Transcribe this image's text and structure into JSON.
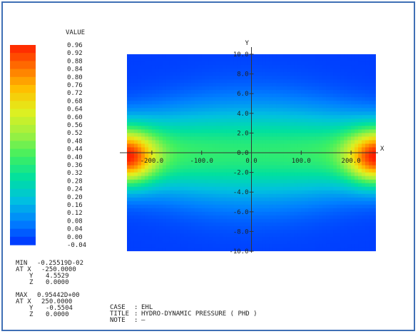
{
  "chart_data": {
    "type": "heatmap",
    "title": "HYDRO-DYNAMIC PRESSURE ( PHD )",
    "legend": {
      "label": "VALUE",
      "ticks": [
        "0.96",
        "0.92",
        "0.88",
        "0.84",
        "0.80",
        "0.76",
        "0.72",
        "0.68",
        "0.64",
        "0.60",
        "0.56",
        "0.52",
        "0.48",
        "0.44",
        "0.40",
        "0.36",
        "0.32",
        "0.28",
        "0.24",
        "0.20",
        "0.16",
        "0.12",
        "0.08",
        "0.04",
        "0.00",
        "-0.04"
      ],
      "min_value": -0.04,
      "max_value": 0.96
    },
    "x_axis": {
      "label": "X",
      "range": [
        -250,
        250
      ],
      "ticks": [
        -200,
        -100,
        0,
        100,
        200
      ],
      "tick_labels": [
        "-200.0",
        "-100.0",
        "0.0",
        "100.0",
        "200.0"
      ]
    },
    "y_axis": {
      "label": "Y",
      "range": [
        -10,
        10
      ],
      "ticks": [
        10,
        8,
        6,
        4,
        2,
        0,
        -2,
        -4,
        -6,
        -8,
        -10
      ],
      "tick_labels": [
        "10.0",
        "8.0",
        "6.0",
        "4.0",
        "2.0",
        "0.0",
        "-2.0",
        "-4.0",
        "-6.0",
        "-8.0",
        "-10.0"
      ]
    },
    "field_samples": [
      {
        "x": -250,
        "y": -0.55,
        "value": 0.954
      },
      {
        "x": 250,
        "y": -0.55,
        "value": 0.954
      },
      {
        "x": 0,
        "y": 0,
        "value": 0.45
      },
      {
        "x": 0,
        "y": 6,
        "value": 0.22
      },
      {
        "x": 0,
        "y": -6,
        "value": 0.18
      },
      {
        "x": -250,
        "y": 4.55,
        "value": -0.0026
      }
    ]
  },
  "stats": {
    "min_label": "MIN",
    "min_value": "-0.25519D-02",
    "min_at_x_label": "AT X",
    "min_x": "-250.0000",
    "min_y_label": "Y",
    "min_y": "4.5529",
    "min_z_label": "Z",
    "min_z": "0.0000",
    "max_label": "MAX",
    "max_value": "0.95442D+00",
    "max_at_x_label": "AT X",
    "max_x": "250.0000",
    "max_y_label": "Y",
    "max_y": "-0.5504",
    "max_z_label": "Z",
    "max_z": "0.0000"
  },
  "info": {
    "case_label": "CASE",
    "case_value": "EHL",
    "title_label": "TITLE",
    "title_value": "HYDRO-DYNAMIC PRESSURE ( PHD )",
    "note_label": "NOTE",
    "note_value": "—"
  },
  "colors": {
    "frame_border": "#3f6fb5",
    "palette": [
      "#0030ff",
      "#0080ff",
      "#00c0e0",
      "#00e0a0",
      "#40f060",
      "#a0f040",
      "#e0f020",
      "#ffc000",
      "#ff7000",
      "#ff2000"
    ]
  }
}
